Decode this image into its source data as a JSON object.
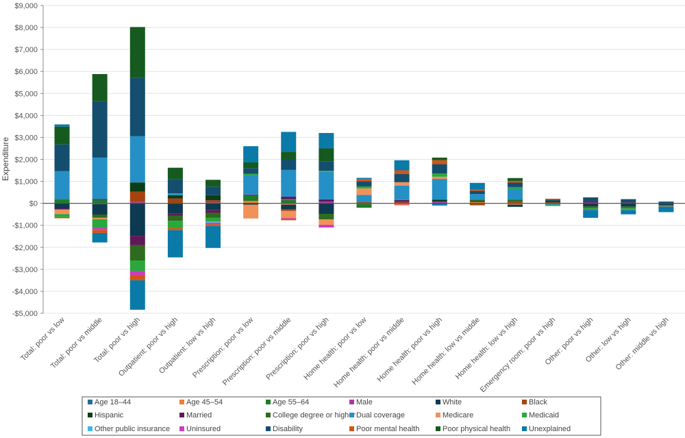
{
  "chart_data": {
    "type": "bar",
    "stacked": true,
    "title": "",
    "xlabel": "",
    "ylabel": "Expenditure",
    "ylim": [
      -5000,
      9000
    ],
    "ytick_step": 1000,
    "ytick_format": "currency",
    "grid": true,
    "legend_position": "bottom",
    "categories": [
      "Total: poor vs low",
      "Total: poor vs middle",
      "Total: poor vs high",
      "Outpatient: poor vs high",
      "Outpatient: low vs high",
      "Prescription: poor vs low",
      "Prescription: poor vs middle",
      "Prescription: poor vs high",
      "Home health: poor vs low",
      "Home health: poor vs middle",
      "Home health: poor vs high",
      "Home health: low vs middle",
      "Home health: low vs high",
      "Emergency room: poor vs high",
      "Other: poor vs high",
      "Other: low vs high",
      "Other: middle vs high"
    ],
    "series": [
      {
        "name": "Age 18–44",
        "color": "#2a6a9a"
      },
      {
        "name": "Age 45–54",
        "color": "#ed7d31"
      },
      {
        "name": "Age 55–64",
        "color": "#1f7a2a"
      },
      {
        "name": "Male",
        "color": "#a63ba6"
      },
      {
        "name": "White",
        "color": "#0d3a50"
      },
      {
        "name": "Black",
        "color": "#a5430f"
      },
      {
        "name": "Hispanic",
        "color": "#0b3d16"
      },
      {
        "name": "Married",
        "color": "#5e1a57"
      },
      {
        "name": "College degree or higher",
        "color": "#2e6b1e"
      },
      {
        "name": "Dual coverage",
        "color": "#2590c6"
      },
      {
        "name": "Medicare",
        "color": "#f0925a"
      },
      {
        "name": "Medicaid",
        "color": "#2aa83c"
      },
      {
        "name": "Other public insurance",
        "color": "#3ab8ef"
      },
      {
        "name": "Uninsured",
        "color": "#cc3bbf"
      },
      {
        "name": "Disability",
        "color": "#144e6e"
      },
      {
        "name": "Poor mental health",
        "color": "#d35415"
      },
      {
        "name": "Poor physical health",
        "color": "#165a1f"
      },
      {
        "name": "Unexplained",
        "color": "#0a7aa8"
      }
    ],
    "values": [
      [
        0,
        0,
        150,
        0,
        -230,
        0,
        0,
        -50,
        50,
        1270,
        -210,
        -140,
        0,
        0,
        1210,
        -50,
        810,
        100
      ],
      [
        0,
        -30,
        150,
        0,
        -480,
        0,
        0,
        50,
        -150,
        1880,
        -60,
        -400,
        0,
        -100,
        2560,
        -130,
        1240,
        -430
      ],
      [
        0,
        0,
        0,
        60,
        -1480,
        470,
        420,
        -430,
        -690,
        2100,
        0,
        -480,
        0,
        -190,
        2650,
        -230,
        2320,
        -1340
      ],
      [
        0,
        0,
        0,
        0,
        -470,
        220,
        150,
        -100,
        -230,
        60,
        0,
        -330,
        0,
        20,
        650,
        -90,
        520,
        -1240
      ],
      [
        0,
        0,
        0,
        40,
        -300,
        100,
        230,
        -130,
        -220,
        0,
        0,
        -180,
        -50,
        -70,
        390,
        -80,
        310,
        -1000
      ],
      [
        0,
        110,
        260,
        0,
        -60,
        0,
        0,
        30,
        0,
        880,
        -630,
        60,
        0,
        0,
        260,
        0,
        260,
        740
      ],
      [
        0,
        -60,
        150,
        40,
        -200,
        -80,
        0,
        110,
        0,
        1220,
        -330,
        0,
        0,
        -30,
        480,
        -70,
        350,
        900
      ],
      [
        0,
        0,
        0,
        80,
        -480,
        0,
        0,
        100,
        -250,
        1250,
        -250,
        50,
        0,
        -120,
        420,
        0,
        600,
        700
      ],
      [
        0,
        -20,
        -180,
        0,
        0,
        50,
        0,
        0,
        0,
        330,
        300,
        90,
        0,
        0,
        240,
        90,
        0,
        60
      ],
      [
        0,
        -60,
        0,
        0,
        0,
        70,
        0,
        80,
        0,
        660,
        150,
        0,
        0,
        -30,
        380,
        160,
        0,
        460
      ],
      [
        0,
        0,
        0,
        80,
        0,
        0,
        80,
        0,
        0,
        950,
        100,
        150,
        0,
        0,
        420,
        180,
        120,
        -100
      ],
      [
        0,
        60,
        0,
        0,
        -30,
        -60,
        50,
        0,
        60,
        250,
        0,
        0,
        0,
        0,
        150,
        60,
        0,
        300
      ],
      [
        0,
        -60,
        0,
        0,
        -100,
        60,
        0,
        0,
        100,
        500,
        0,
        80,
        0,
        0,
        200,
        80,
        130,
        0
      ],
      [
        0,
        0,
        0,
        0,
        0,
        50,
        50,
        0,
        0,
        -60,
        0,
        -60,
        0,
        0,
        70,
        40,
        0,
        0
      ],
      [
        0,
        0,
        0,
        30,
        -140,
        0,
        0,
        80,
        -80,
        0,
        0,
        -40,
        0,
        -40,
        160,
        0,
        0,
        -360
      ],
      [
        0,
        0,
        0,
        0,
        -140,
        0,
        0,
        40,
        -80,
        0,
        0,
        -50,
        0,
        -30,
        150,
        0,
        0,
        -200
      ],
      [
        0,
        0,
        0,
        0,
        -80,
        0,
        0,
        0,
        -50,
        0,
        -20,
        0,
        0,
        0,
        80,
        0,
        0,
        -250
      ]
    ]
  }
}
